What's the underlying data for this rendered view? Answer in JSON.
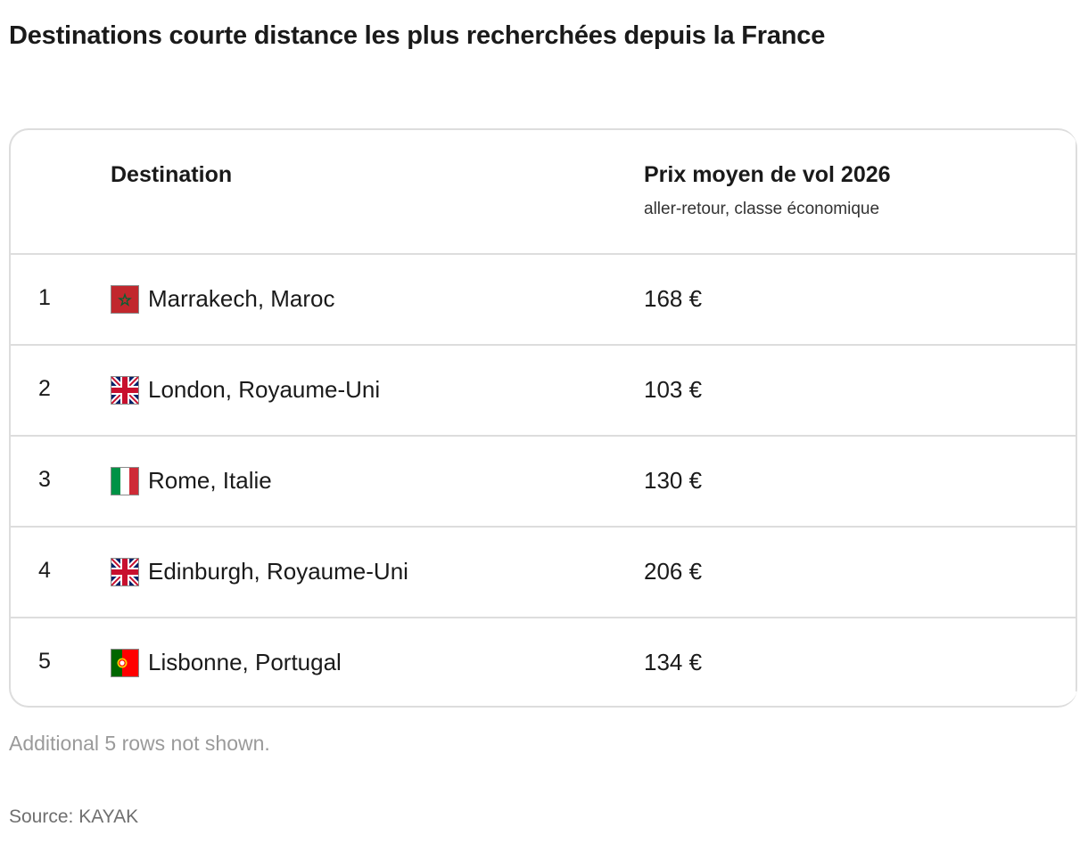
{
  "title": "Destinations courte distance les plus recherchées depuis la France",
  "table": {
    "headers": {
      "destination": "Destination",
      "price": "Prix moyen de vol 2026",
      "price_sub": "aller-retour, classe économique"
    },
    "rows": [
      {
        "rank": "1",
        "flag_icon": "morocco-flag-icon",
        "destination": "Marrakech, Maroc",
        "price": "168 €"
      },
      {
        "rank": "2",
        "flag_icon": "uk-flag-icon",
        "destination": "London, Royaume-Uni",
        "price": "103 €"
      },
      {
        "rank": "3",
        "flag_icon": "italy-flag-icon",
        "destination": "Rome, Italie",
        "price": "130 €"
      },
      {
        "rank": "4",
        "flag_icon": "uk-flag-icon",
        "destination": "Edinburgh, Royaume-Uni",
        "price": "206 €"
      },
      {
        "rank": "5",
        "flag_icon": "portugal-flag-icon",
        "destination": "Lisbonne, Portugal",
        "price": "134 €"
      }
    ]
  },
  "footnote": "Additional 5 rows not shown.",
  "source": "Source: KAYAK",
  "colors": {
    "text": "#1a1a1a",
    "border": "#dddddd",
    "muted": "#9a9a9a",
    "source": "#6f6f6f"
  }
}
